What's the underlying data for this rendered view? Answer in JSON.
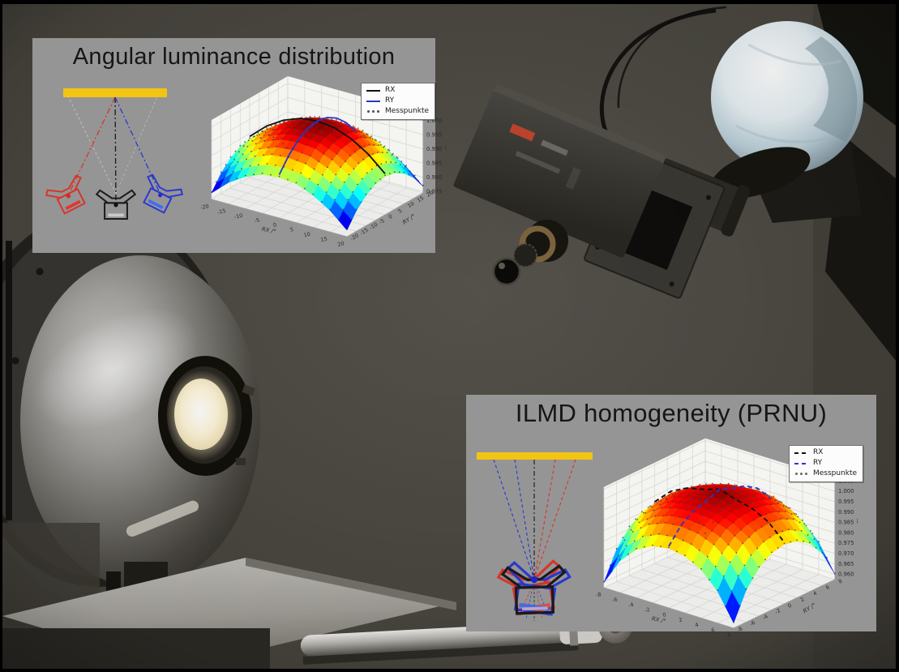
{
  "colors": {
    "photo_background": "#4b4840",
    "frame_black": "#000000",
    "panel_background": "#959595",
    "target_yellow": "#f2c513",
    "camera_red": "#d6352b",
    "camera_blue": "#2b38cf",
    "camera_black": "#1a1a1a",
    "curve_rx_black": "#111111",
    "curve_ry_blue": "#2a35c8",
    "messpunkte_gray": "#555555",
    "plot_pane": "#f2f2f0",
    "lamp_glow_white": "#fffdf0"
  },
  "panels": [
    {
      "title": "Angular luminance distribution",
      "legend": [
        {
          "label": "RX",
          "style": "solid",
          "color": "#111111"
        },
        {
          "label": "RY",
          "style": "solid",
          "color": "#2a35c8"
        },
        {
          "label": "Messpunkte",
          "style": "dots",
          "color": "#555555"
        }
      ]
    },
    {
      "title": "ILMD homogeneity (PRNU)",
      "legend": [
        {
          "label": "RX",
          "style": "dashed",
          "color": "#111111"
        },
        {
          "label": "RY",
          "style": "dashed",
          "color": "#2a35c8"
        },
        {
          "label": "Messpunkte",
          "style": "dots",
          "color": "#6e6e6e"
        }
      ]
    }
  ],
  "chart_data": [
    {
      "type": "surface",
      "panel": "Angular luminance distribution",
      "colormap": "jet",
      "xlabel": "RX /°",
      "ylabel": "RY /°",
      "x_ticks": [
        -20,
        -15,
        -10,
        -5,
        0,
        5,
        10,
        15,
        20
      ],
      "y_ticks": [
        -20,
        -15,
        -10,
        -5,
        0,
        5,
        10,
        15,
        20
      ],
      "z_ticks": [
        0.975,
        0.98,
        0.985,
        0.99,
        0.995,
        1.0
      ],
      "zlim": [
        0.975,
        1.0
      ],
      "x": [
        -20,
        -15,
        -10,
        -5,
        0,
        5,
        10,
        15,
        20
      ],
      "y": [
        -20,
        -15,
        -10,
        -5,
        0,
        5,
        10,
        15,
        20
      ],
      "z_grid": [
        [
          0.9768,
          0.9821,
          0.9858,
          0.9882,
          0.9888,
          0.9882,
          0.9858,
          0.9821,
          0.9768
        ],
        [
          0.9818,
          0.987,
          0.9907,
          0.9931,
          0.9937,
          0.9931,
          0.9907,
          0.987,
          0.9818
        ],
        [
          0.9852,
          0.9905,
          0.9942,
          0.9966,
          0.9972,
          0.9966,
          0.9942,
          0.9905,
          0.9852
        ],
        [
          0.9873,
          0.9926,
          0.9963,
          0.9986,
          0.9993,
          0.9986,
          0.9963,
          0.9926,
          0.9873
        ],
        [
          0.988,
          0.9933,
          0.997,
          0.9993,
          1.0,
          0.9993,
          0.997,
          0.9933,
          0.988
        ],
        [
          0.9873,
          0.9926,
          0.9963,
          0.9986,
          0.9993,
          0.9986,
          0.9963,
          0.9926,
          0.9873
        ],
        [
          0.9852,
          0.9905,
          0.9942,
          0.9966,
          0.9972,
          0.9966,
          0.9942,
          0.9905,
          0.9852
        ],
        [
          0.9818,
          0.987,
          0.9907,
          0.9931,
          0.9937,
          0.9931,
          0.9907,
          0.987,
          0.9818
        ],
        [
          0.9768,
          0.9821,
          0.9858,
          0.9882,
          0.9888,
          0.9882,
          0.9858,
          0.9821,
          0.9768
        ]
      ],
      "legend": [
        "RX",
        "RY",
        "Messpunkte"
      ],
      "profile_rx": {
        "along": "y=0",
        "style": "solid",
        "color": "#111111"
      },
      "profile_ry": {
        "along": "x=0",
        "style": "solid",
        "color": "#2a35c8"
      },
      "z_axis_note": "Ī",
      "z_note_at": 0.99
    },
    {
      "type": "surface",
      "panel": "ILMD homogeneity (PRNU)",
      "colormap": "jet",
      "xlabel": "RX /°",
      "ylabel": "RY /°",
      "x_ticks": [
        -8,
        -6,
        -4,
        -2,
        0,
        2,
        4,
        6,
        8
      ],
      "y_ticks": [
        -8,
        -6,
        -4,
        -2,
        0,
        2,
        4,
        6,
        8
      ],
      "z_ticks": [
        0.96,
        0.965,
        0.97,
        0.975,
        0.98,
        0.985,
        0.99,
        0.995,
        1.0,
        1.005
      ],
      "zlim": [
        0.96,
        1.005
      ],
      "x": [
        -8,
        -6,
        -4,
        -2,
        0,
        2,
        4,
        6,
        8
      ],
      "y": [
        -8,
        -6,
        -4,
        -2,
        0,
        2,
        4,
        6,
        8
      ],
      "z_grid": [
        [
          0.96,
          0.973,
          0.9808,
          0.9849,
          0.9862,
          0.9849,
          0.9808,
          0.973,
          0.96
        ],
        [
          0.973,
          0.9836,
          0.9897,
          0.9928,
          0.9937,
          0.9928,
          0.9897,
          0.9836,
          0.973
        ],
        [
          0.9808,
          0.9897,
          0.9946,
          0.997,
          0.9977,
          0.997,
          0.9946,
          0.9897,
          0.9808
        ],
        [
          0.9849,
          0.9928,
          0.997,
          0.9989,
          0.9995,
          0.9989,
          0.997,
          0.9928,
          0.9849
        ],
        [
          0.9862,
          0.9937,
          0.9977,
          0.9995,
          1.002,
          0.9995,
          0.9977,
          0.9937,
          0.9862
        ],
        [
          0.9849,
          0.9928,
          0.997,
          0.9989,
          0.9995,
          0.9989,
          0.997,
          0.9928,
          0.9849
        ],
        [
          0.9808,
          0.9897,
          0.9946,
          0.997,
          0.9977,
          0.997,
          0.9946,
          0.9897,
          0.9808
        ],
        [
          0.973,
          0.9836,
          0.9897,
          0.9928,
          0.9937,
          0.9928,
          0.9897,
          0.9836,
          0.973
        ],
        [
          0.96,
          0.973,
          0.9808,
          0.9849,
          0.9862,
          0.9849,
          0.9808,
          0.973,
          0.96
        ]
      ],
      "legend": [
        "RX",
        "RY",
        "Messpunkte"
      ],
      "profile_rx": {
        "along": "y=0",
        "style": "dashed",
        "color": "#111111"
      },
      "profile_ry": {
        "along": "x=0",
        "style": "dashed",
        "color": "#2a35c8"
      },
      "z_axis_note": "Ī",
      "z_note_at": 0.985
    }
  ]
}
